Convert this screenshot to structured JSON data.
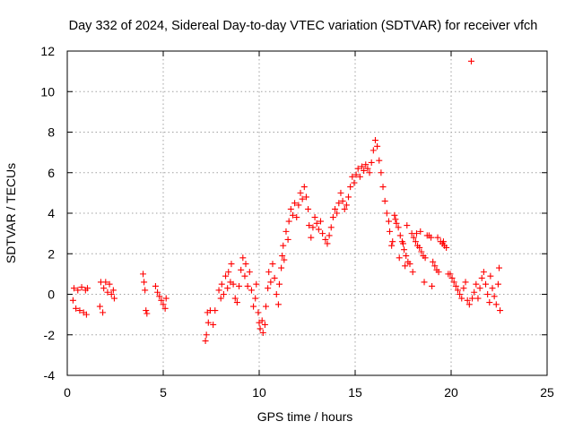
{
  "chart_data": {
    "type": "scatter",
    "title": "Day 332 of 2024, Sidereal Day-to-day VTEC variation (SDTVAR) for receiver vfch",
    "xlabel": "GPS time / hours",
    "ylabel": "SDTVAR / TECUs",
    "xlim": [
      0,
      25
    ],
    "ylim": [
      -4,
      12
    ],
    "xticks": [
      0,
      5,
      10,
      15,
      20,
      25
    ],
    "yticks": [
      -4,
      -2,
      0,
      2,
      4,
      6,
      8,
      10,
      12
    ],
    "grid": true,
    "marker": "plus",
    "color": "#ff0000",
    "series": [
      {
        "name": "SDTVAR",
        "points": [
          [
            0.3,
            -0.3
          ],
          [
            0.35,
            0.3
          ],
          [
            0.45,
            -0.7
          ],
          [
            0.55,
            0.2
          ],
          [
            0.65,
            -0.8
          ],
          [
            0.75,
            0.35
          ],
          [
            0.85,
            -0.9
          ],
          [
            0.95,
            0.2
          ],
          [
            1.0,
            -1.0
          ],
          [
            1.05,
            0.3
          ],
          [
            1.7,
            -0.6
          ],
          [
            1.75,
            0.6
          ],
          [
            1.85,
            -0.9
          ],
          [
            1.9,
            0.3
          ],
          [
            2.0,
            0.6
          ],
          [
            2.1,
            0.1
          ],
          [
            2.2,
            0.5
          ],
          [
            2.3,
            0.0
          ],
          [
            2.4,
            0.2
          ],
          [
            2.45,
            -0.2
          ],
          [
            3.95,
            1.0
          ],
          [
            4.0,
            0.6
          ],
          [
            4.05,
            0.2
          ],
          [
            4.1,
            -0.8
          ],
          [
            4.15,
            -0.95
          ],
          [
            4.6,
            0.4
          ],
          [
            4.7,
            0.1
          ],
          [
            4.8,
            -0.1
          ],
          [
            4.9,
            -0.3
          ],
          [
            5.0,
            -0.5
          ],
          [
            5.1,
            -0.7
          ],
          [
            5.15,
            -0.2
          ],
          [
            7.2,
            -2.3
          ],
          [
            7.25,
            -2.0
          ],
          [
            7.3,
            -0.9
          ],
          [
            7.35,
            -1.4
          ],
          [
            7.45,
            -0.8
          ],
          [
            7.6,
            -1.5
          ],
          [
            7.7,
            -0.8
          ],
          [
            7.9,
            0.2
          ],
          [
            8.0,
            -0.2
          ],
          [
            8.05,
            0.5
          ],
          [
            8.15,
            0.0
          ],
          [
            8.25,
            0.9
          ],
          [
            8.35,
            0.3
          ],
          [
            8.4,
            1.1
          ],
          [
            8.5,
            0.6
          ],
          [
            8.55,
            1.5
          ],
          [
            8.65,
            0.5
          ],
          [
            8.75,
            -0.2
          ],
          [
            8.85,
            -0.4
          ],
          [
            8.95,
            0.4
          ],
          [
            9.05,
            1.2
          ],
          [
            9.15,
            1.8
          ],
          [
            9.25,
            0.9
          ],
          [
            9.3,
            1.5
          ],
          [
            9.4,
            0.4
          ],
          [
            9.5,
            1.1
          ],
          [
            9.6,
            0.2
          ],
          [
            9.7,
            -0.6
          ],
          [
            9.8,
            -0.2
          ],
          [
            9.85,
            0.5
          ],
          [
            9.95,
            -0.9
          ],
          [
            10.0,
            -1.4
          ],
          [
            10.05,
            -1.7
          ],
          [
            10.15,
            -1.3
          ],
          [
            10.2,
            -1.9
          ],
          [
            10.3,
            -1.5
          ],
          [
            10.35,
            -0.6
          ],
          [
            10.45,
            0.3
          ],
          [
            10.5,
            1.1
          ],
          [
            10.6,
            0.6
          ],
          [
            10.7,
            1.5
          ],
          [
            10.8,
            0.8
          ],
          [
            10.9,
            0.0
          ],
          [
            11.0,
            -0.5
          ],
          [
            11.05,
            0.5
          ],
          [
            11.15,
            1.3
          ],
          [
            11.2,
            1.9
          ],
          [
            11.25,
            2.4
          ],
          [
            11.3,
            1.7
          ],
          [
            11.4,
            3.1
          ],
          [
            11.5,
            2.7
          ],
          [
            11.55,
            3.6
          ],
          [
            11.65,
            4.2
          ],
          [
            11.75,
            3.9
          ],
          [
            11.85,
            4.5
          ],
          [
            11.95,
            3.8
          ],
          [
            12.05,
            4.4
          ],
          [
            12.15,
            5.0
          ],
          [
            12.25,
            4.7
          ],
          [
            12.35,
            5.3
          ],
          [
            12.45,
            4.8
          ],
          [
            12.55,
            4.2
          ],
          [
            12.6,
            3.4
          ],
          [
            12.7,
            2.8
          ],
          [
            12.8,
            3.3
          ],
          [
            12.9,
            3.8
          ],
          [
            13.0,
            3.5
          ],
          [
            13.1,
            3.2
          ],
          [
            13.2,
            3.6
          ],
          [
            13.3,
            3.0
          ],
          [
            13.45,
            2.7
          ],
          [
            13.55,
            2.5
          ],
          [
            13.65,
            2.9
          ],
          [
            13.75,
            3.3
          ],
          [
            13.85,
            3.8
          ],
          [
            13.95,
            4.2
          ],
          [
            14.05,
            4.0
          ],
          [
            14.15,
            4.5
          ],
          [
            14.25,
            5.0
          ],
          [
            14.35,
            4.6
          ],
          [
            14.45,
            4.2
          ],
          [
            14.55,
            4.4
          ],
          [
            14.65,
            4.8
          ],
          [
            14.75,
            5.3
          ],
          [
            14.85,
            5.8
          ],
          [
            14.95,
            5.5
          ],
          [
            15.05,
            5.9
          ],
          [
            15.15,
            6.2
          ],
          [
            15.25,
            5.8
          ],
          [
            15.35,
            6.3
          ],
          [
            15.45,
            6.1
          ],
          [
            15.55,
            6.4
          ],
          [
            15.65,
            6.2
          ],
          [
            15.75,
            6.0
          ],
          [
            15.85,
            6.5
          ],
          [
            15.95,
            7.1
          ],
          [
            16.05,
            7.6
          ],
          [
            16.15,
            7.3
          ],
          [
            16.25,
            6.6
          ],
          [
            16.35,
            6.0
          ],
          [
            16.45,
            5.3
          ],
          [
            16.55,
            4.6
          ],
          [
            16.65,
            4.0
          ],
          [
            16.75,
            3.6
          ],
          [
            16.8,
            3.1
          ],
          [
            16.9,
            2.4
          ],
          [
            17.05,
            3.9
          ],
          [
            17.15,
            3.5
          ],
          [
            17.25,
            3.3
          ],
          [
            17.35,
            2.9
          ],
          [
            17.45,
            2.6
          ],
          [
            17.55,
            2.2
          ],
          [
            17.65,
            1.9
          ],
          [
            17.75,
            1.6
          ],
          [
            17.85,
            1.5
          ],
          [
            17.95,
            3.0
          ],
          [
            18.05,
            2.8
          ],
          [
            18.15,
            2.6
          ],
          [
            18.25,
            2.4
          ],
          [
            18.35,
            2.3
          ],
          [
            18.45,
            2.1
          ],
          [
            18.55,
            1.9
          ],
          [
            18.65,
            1.8
          ],
          [
            18.75,
            2.9
          ],
          [
            18.85,
            2.9
          ],
          [
            18.95,
            2.8
          ],
          [
            19.05,
            1.6
          ],
          [
            19.15,
            1.4
          ],
          [
            19.25,
            1.2
          ],
          [
            19.35,
            1.1
          ],
          [
            19.45,
            2.6
          ],
          [
            19.55,
            2.5
          ],
          [
            19.65,
            2.4
          ],
          [
            19.75,
            2.3
          ],
          [
            19.85,
            1.0
          ],
          [
            19.95,
            1.0
          ],
          [
            20.05,
            0.8
          ],
          [
            20.15,
            0.6
          ],
          [
            20.25,
            0.4
          ],
          [
            20.35,
            0.2
          ],
          [
            20.45,
            0.0
          ],
          [
            20.55,
            -0.2
          ],
          [
            20.65,
            0.3
          ],
          [
            20.75,
            0.6
          ],
          [
            20.85,
            -0.3
          ],
          [
            20.95,
            -0.5
          ],
          [
            21.05,
            11.5
          ],
          [
            21.1,
            -0.2
          ],
          [
            21.2,
            0.1
          ],
          [
            21.3,
            0.5
          ],
          [
            21.4,
            -0.2
          ],
          [
            21.5,
            0.3
          ],
          [
            21.6,
            0.8
          ],
          [
            21.7,
            1.1
          ],
          [
            21.8,
            0.5
          ],
          [
            21.9,
            0.0
          ],
          [
            22.0,
            -0.4
          ],
          [
            22.05,
            0.9
          ],
          [
            22.15,
            0.3
          ],
          [
            22.25,
            -0.1
          ],
          [
            22.35,
            -0.5
          ],
          [
            22.45,
            0.5
          ],
          [
            22.5,
            1.3
          ],
          [
            22.55,
            -0.8
          ],
          [
            16.95,
            2.6
          ],
          [
            17.1,
            3.7
          ],
          [
            17.5,
            2.5
          ],
          [
            17.7,
            3.4
          ],
          [
            18.2,
            3.0
          ],
          [
            18.4,
            3.1
          ],
          [
            19.3,
            2.8
          ],
          [
            19.6,
            2.6
          ],
          [
            17.3,
            1.8
          ],
          [
            17.6,
            1.4
          ],
          [
            18.0,
            1.1
          ],
          [
            18.6,
            0.6
          ],
          [
            19.0,
            0.4
          ]
        ]
      }
    ]
  }
}
